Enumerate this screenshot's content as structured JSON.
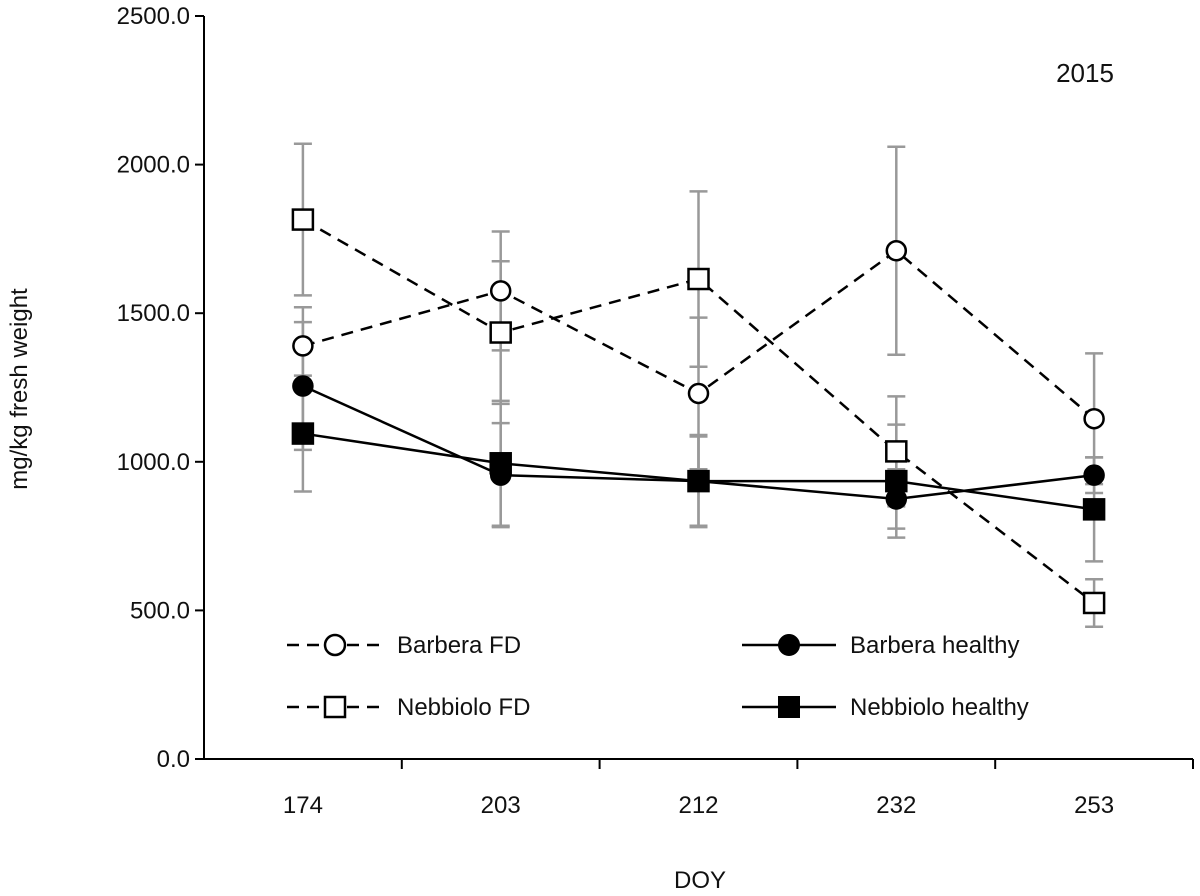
{
  "chart_data": {
    "type": "line",
    "title": "",
    "annotation": "2015",
    "xlabel": "DOY",
    "ylabel": "mg/kg fresh weight",
    "categories": [
      "174",
      "203",
      "212",
      "232",
      "253"
    ],
    "ylim": [
      0,
      2500
    ],
    "yticks": [
      "0.0",
      "500.0",
      "1000.0",
      "1500.0",
      "2000.0",
      "2500.0"
    ],
    "grid": false,
    "legend_position": "bottom",
    "colors": {
      "line": "#000000",
      "errorbar": "#999999",
      "axis": "#000000"
    },
    "series": [
      {
        "name": "Barbera FD",
        "line_style": "dashed",
        "marker": "circle-open",
        "values": [
          1390,
          1575,
          1230,
          1710,
          1145
        ],
        "errors": [
          130,
          200,
          255,
          350,
          220
        ]
      },
      {
        "name": "Barbera healthy",
        "line_style": "solid",
        "marker": "circle-filled",
        "values": [
          1255,
          955,
          935,
          875,
          955
        ],
        "errors": [
          215,
          175,
          150,
          100,
          60
        ]
      },
      {
        "name": "Nebbiolo FD",
        "line_style": "dashed",
        "marker": "square-open",
        "values": [
          1815,
          1435,
          1615,
          1035,
          525
        ],
        "errors": [
          255,
          240,
          295,
          185,
          80
        ]
      },
      {
        "name": "Nebbiolo healthy",
        "line_style": "solid",
        "marker": "square-filled",
        "values": [
          1095,
          995,
          935,
          935,
          840
        ],
        "errors": [
          195,
          210,
          155,
          190,
          175
        ]
      }
    ]
  }
}
